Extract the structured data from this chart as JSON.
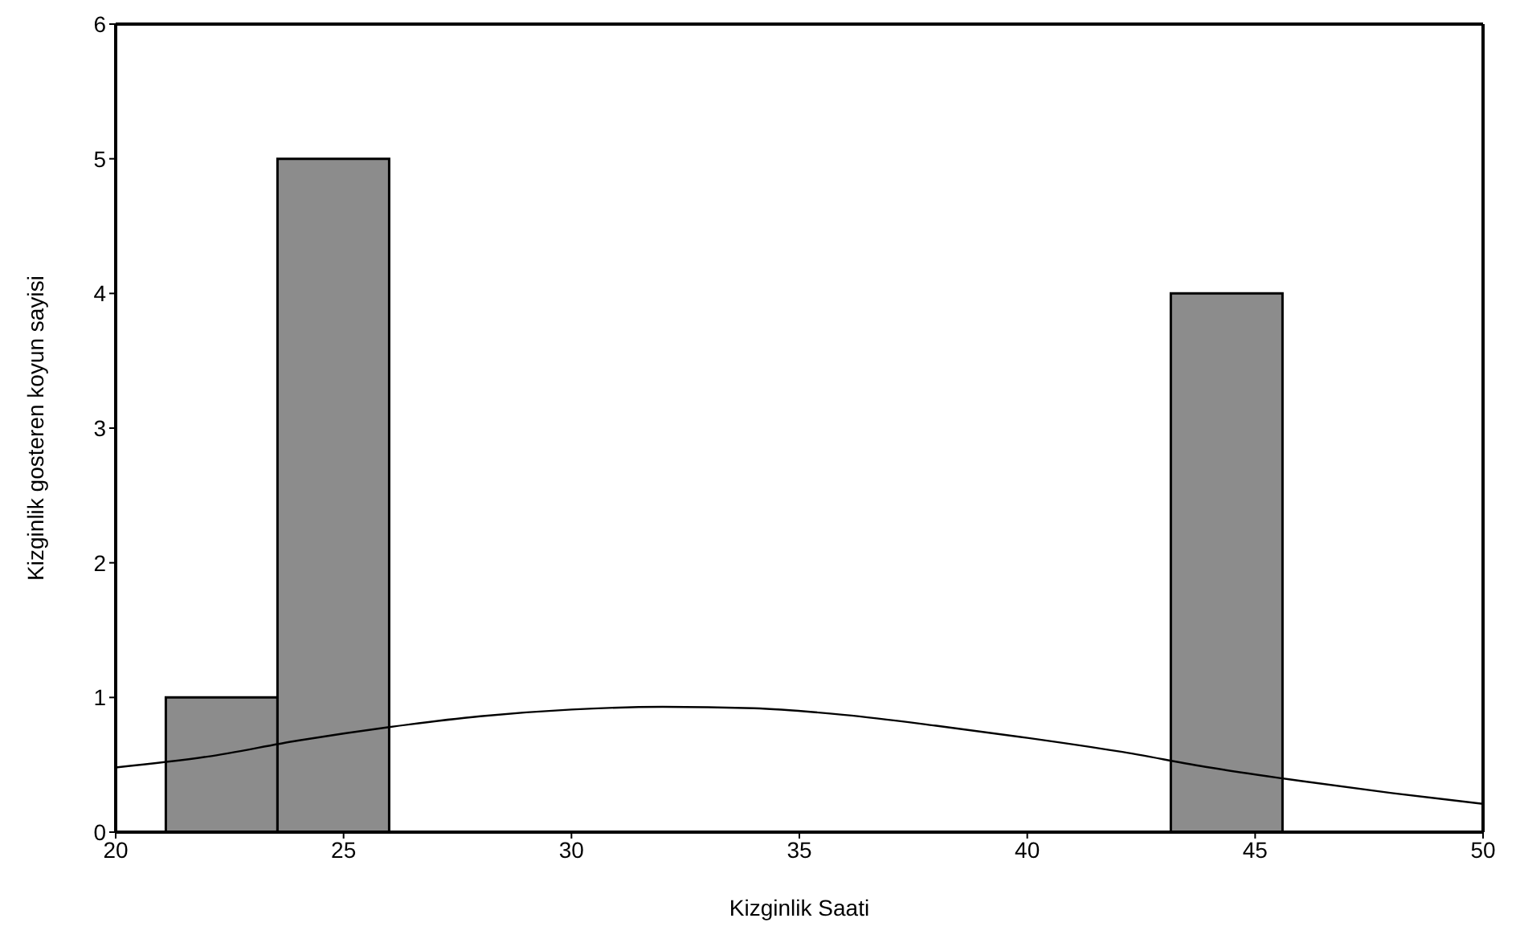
{
  "chart_data": {
    "type": "histogram",
    "xlabel": "Kizginlik Saati",
    "ylabel": "Kizginlik gosteren koyun sayisi",
    "bins": [
      21.1,
      23.55,
      26.0,
      28.45,
      30.9,
      33.35,
      35.8,
      38.25,
      40.7,
      43.15,
      45.6
    ],
    "values": [
      1,
      5,
      0,
      0,
      0,
      0,
      0,
      0,
      0,
      4
    ],
    "color": "#8c8c8c",
    "series": [
      {
        "type": "line",
        "color": "#000000",
        "x": [
          20,
          22,
          24,
          26,
          28,
          30,
          32,
          34,
          36,
          38,
          40,
          42,
          44,
          46,
          48,
          50
        ],
        "values": [
          0.48,
          0.56,
          0.68,
          0.78,
          0.86,
          0.91,
          0.93,
          0.92,
          0.87,
          0.79,
          0.7,
          0.6,
          0.48,
          0.38,
          0.29,
          0.21
        ]
      }
    ],
    "xlim": [
      20,
      50
    ],
    "xticks": [
      20,
      25,
      30,
      35,
      40,
      45,
      50
    ],
    "ylim": [
      0,
      6
    ],
    "yticks": [
      0,
      1,
      2,
      3,
      4,
      5,
      6
    ],
    "grid": false,
    "marker": "none",
    "line_style": "solid"
  }
}
